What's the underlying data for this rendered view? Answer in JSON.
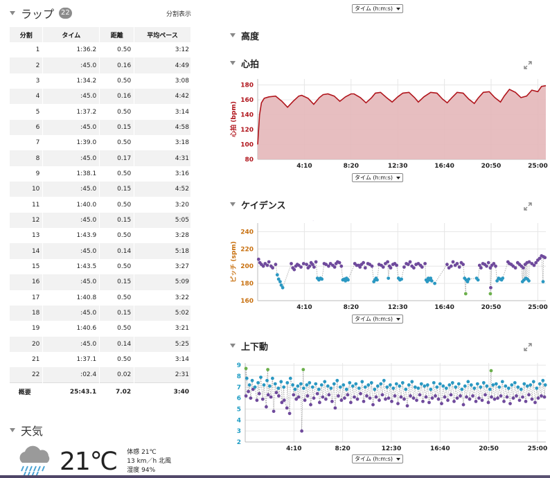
{
  "laps": {
    "title": "ラップ",
    "count": "22",
    "split_link": "分割表示",
    "columns": [
      "分割",
      "タイム",
      "距離",
      "平均ペース"
    ],
    "rows": [
      [
        "1",
        "1:36.2",
        "0.50",
        "3:12"
      ],
      [
        "2",
        ":45.0",
        "0.16",
        "4:49"
      ],
      [
        "3",
        "1:34.2",
        "0.50",
        "3:08"
      ],
      [
        "4",
        ":45.0",
        "0.16",
        "4:42"
      ],
      [
        "5",
        "1:37.2",
        "0.50",
        "3:14"
      ],
      [
        "6",
        ":45.0",
        "0.15",
        "4:58"
      ],
      [
        "7",
        "1:39.0",
        "0.50",
        "3:18"
      ],
      [
        "8",
        ":45.0",
        "0.17",
        "4:31"
      ],
      [
        "9",
        "1:38.1",
        "0.50",
        "3:16"
      ],
      [
        "10",
        ":45.0",
        "0.15",
        "4:52"
      ],
      [
        "11",
        "1:40.0",
        "0.50",
        "3:20"
      ],
      [
        "12",
        ":45.0",
        "0.15",
        "5:05"
      ],
      [
        "13",
        "1:43.9",
        "0.50",
        "3:28"
      ],
      [
        "14",
        ":45.0",
        "0.14",
        "5:18"
      ],
      [
        "15",
        "1:43.5",
        "0.50",
        "3:27"
      ],
      [
        "16",
        ":45.0",
        "0.15",
        "5:09"
      ],
      [
        "17",
        "1:40.8",
        "0.50",
        "3:22"
      ],
      [
        "18",
        ":45.0",
        "0.15",
        "5:02"
      ],
      [
        "19",
        "1:40.6",
        "0.50",
        "3:21"
      ],
      [
        "20",
        ":45.0",
        "0.14",
        "5:25"
      ],
      [
        "21",
        "1:37.1",
        "0.50",
        "3:14"
      ],
      [
        "22",
        ":02.4",
        "0.02",
        "2:31"
      ]
    ],
    "summary": [
      "概要",
      "25:43.1",
      "7.02",
      "3:40"
    ]
  },
  "weather": {
    "title": "天気",
    "icon": "rain-cloud-icon",
    "temp": "21℃",
    "feels_like": "体感 21℃",
    "wind": "13 km／h 北風",
    "humidity": "湿度 94%"
  },
  "x_select": "タイム (h:m:s)",
  "sections": {
    "altitude": "高度",
    "heart_rate": "心拍",
    "cadence": "ケイデンス",
    "vertical": "上下動"
  },
  "colors": {
    "hr_line": "#b0141b",
    "hr_fill": "#e4b7b9",
    "cadence_axis": "#c8700f",
    "vertical_axis": "#1d9cc4",
    "purple": "#6f4a9c",
    "blue": "#2a98c2",
    "green": "#6cb04c"
  },
  "chart_data": [
    {
      "type": "area",
      "name": "hr",
      "ylabel": "心拍 (bpm)",
      "yticks": [
        80,
        100,
        120,
        140,
        160,
        180
      ],
      "ylim": [
        80,
        188
      ],
      "xlim": [
        0,
        1543
      ],
      "xticks": [
        "4:10",
        "8:20",
        "12:30",
        "16:40",
        "20:50",
        "25:00"
      ],
      "grid": true,
      "x": [
        0,
        10,
        20,
        35,
        60,
        96,
        130,
        160,
        190,
        220,
        236,
        270,
        300,
        330,
        350,
        376,
        410,
        440,
        470,
        500,
        516,
        550,
        580,
        610,
        630,
        658,
        690,
        720,
        750,
        777,
        810,
        840,
        860,
        890,
        926,
        960,
        990,
        1015,
        1040,
        1068,
        1100,
        1130,
        1160,
        1180,
        1208,
        1240,
        1270,
        1300,
        1320,
        1348,
        1380,
        1410,
        1440,
        1468,
        1500,
        1520,
        1543
      ],
      "y": [
        100,
        140,
        156,
        162,
        164,
        165,
        158,
        150,
        158,
        165,
        166,
        162,
        154,
        163,
        167,
        168,
        165,
        158,
        164,
        168,
        168,
        163,
        156,
        163,
        169,
        170,
        163,
        157,
        164,
        169,
        170,
        163,
        157,
        164,
        170,
        169,
        161,
        156,
        163,
        170,
        169,
        161,
        155,
        162,
        170,
        171,
        163,
        157,
        165,
        174,
        170,
        163,
        165,
        173,
        171,
        178,
        179
      ]
    },
    {
      "type": "scatter",
      "name": "cadence",
      "ylabel": "ピッチ (spm)",
      "yticks": [
        160,
        180,
        200,
        220,
        240
      ],
      "ylim": [
        160,
        250
      ],
      "xlim": [
        0,
        1543
      ],
      "xticks": [
        "4:10",
        "8:20",
        "12:30",
        "16:40",
        "20:50",
        "25:00"
      ],
      "grid": true,
      "series": [
        {
          "color": "purple",
          "x": [
            5,
            12,
            20,
            30,
            40,
            52,
            60,
            72,
            80,
            96,
            180,
            188,
            196,
            204,
            212,
            220,
            232,
            246,
            262,
            270,
            278,
            286,
            294,
            302,
            312,
            356,
            366,
            380,
            390,
            402,
            412,
            420,
            428,
            438,
            448,
            520,
            530,
            540,
            548,
            556,
            566,
            576,
            590,
            600,
            612,
            650,
            662,
            672,
            684,
            696,
            706,
            712,
            724,
            734,
            744,
            784,
            796,
            806,
            816,
            826,
            836,
            848,
            860,
            872,
            880,
            896,
            1014,
            1024,
            1036,
            1046,
            1058,
            1068,
            1080,
            1090,
            1100,
            1188,
            1196,
            1206,
            1216,
            1226,
            1236,
            1246,
            1254,
            1264,
            1274,
            1340,
            1348,
            1358,
            1368,
            1380,
            1392,
            1402,
            1412,
            1422,
            1432,
            1442,
            1454,
            1468,
            1480,
            1490,
            1500,
            1510,
            1520,
            1530,
            1538
          ],
          "y": [
            208,
            204,
            202,
            200,
            203,
            201,
            205,
            200,
            198,
            202,
            203,
            198,
            196,
            200,
            202,
            201,
            199,
            203,
            202,
            198,
            200,
            204,
            202,
            199,
            205,
            203,
            202,
            200,
            203,
            201,
            199,
            203,
            205,
            204,
            200,
            203,
            201,
            201,
            199,
            202,
            204,
            198,
            203,
            202,
            200,
            202,
            201,
            199,
            203,
            205,
            200,
            198,
            202,
            203,
            201,
            199,
            203,
            202,
            205,
            200,
            198,
            202,
            203,
            201,
            199,
            203,
            202,
            198,
            200,
            205,
            201,
            203,
            199,
            204,
            202,
            201,
            198,
            203,
            202,
            200,
            204,
            198,
            201,
            203,
            200,
            205,
            203,
            202,
            200,
            198,
            204,
            202,
            200,
            198,
            202,
            204,
            205,
            203,
            201,
            204,
            207,
            209,
            212,
            211,
            210
          ]
        },
        {
          "color": "blue",
          "x": [
            105,
            112,
            120,
            126,
            134,
            320,
            328,
            336,
            344,
            456,
            464,
            470,
            476,
            484,
            622,
            628,
            634,
            640,
            700,
            754,
            762,
            770,
            902,
            908,
            914,
            920,
            926,
            932,
            948,
            1108,
            1116,
            1124,
            1130,
            1172,
            1180,
            1282,
            1290,
            1298,
            1306,
            1312,
            1418,
            1426,
            1436,
            1444,
            1452,
            1528
          ],
          "y": [
            190,
            185,
            182,
            178,
            175,
            186,
            184,
            186,
            185,
            184,
            185,
            183,
            186,
            184,
            182,
            184,
            186,
            184,
            186,
            186,
            184,
            185,
            184,
            182,
            186,
            184,
            186,
            183,
            180,
            186,
            184,
            182,
            185,
            186,
            184,
            183,
            186,
            185,
            184,
            186,
            182,
            184,
            186,
            185,
            183,
            182
          ]
        },
        {
          "color": "green",
          "x": [
            1114,
            1246
          ],
          "y": [
            168,
            168
          ]
        }
      ],
      "outliers": [
        {
          "x": 298,
          "y": 255
        },
        {
          "x": 1248,
          "y": 175
        }
      ]
    },
    {
      "type": "scatter",
      "name": "vertical",
      "ylabel": "上下動 (cm)",
      "yticks": [
        2,
        3,
        4,
        5,
        6,
        7,
        8,
        9
      ],
      "ylim": [
        2,
        9.2
      ],
      "xlim": [
        0,
        1543
      ],
      "xticks": [
        "4:10",
        "8:20",
        "12:30",
        "16:40",
        "20:50",
        "25:00"
      ],
      "grid": true,
      "series": [
        {
          "color": "purple",
          "x": [
            4,
            16,
            28,
            40,
            60,
            72,
            90,
            108,
            118,
            132,
            146,
            160,
            172,
            188,
            200,
            214,
            228,
            248,
            262,
            274,
            290,
            306,
            320,
            336,
            352,
            370,
            382,
            398,
            414,
            430,
            446,
            462,
            478,
            494,
            510,
            526,
            542,
            560,
            576,
            592,
            608,
            624,
            640,
            656,
            672,
            688,
            704,
            720,
            736,
            752,
            768,
            784,
            800,
            816,
            832,
            848,
            864,
            880,
            896,
            912,
            928,
            944,
            960,
            976,
            992,
            1008,
            1024,
            1040,
            1056,
            1072,
            1088,
            1104,
            1120,
            1136,
            1152,
            1168,
            1184,
            1200,
            1216,
            1232,
            1248,
            1264,
            1280,
            1296,
            1312,
            1328,
            1344,
            1360,
            1376,
            1392,
            1408,
            1424,
            1440,
            1456,
            1472,
            1488,
            1504,
            1520,
            1536
          ],
          "y": [
            6.2,
            6.6,
            6.0,
            6.8,
            5.8,
            6.4,
            5.9,
            5.2,
            6.3,
            6.1,
            4.8,
            6.5,
            6.2,
            5.6,
            5.8,
            5.1,
            4.6,
            6.3,
            5.9,
            6.1,
            3.0,
            5.8,
            6.2,
            5.4,
            6.0,
            6.4,
            5.6,
            6.1,
            5.9,
            6.3,
            5.7,
            5.1,
            6.2,
            5.8,
            6.0,
            6.3,
            5.6,
            6.1,
            5.9,
            6.4,
            5.7,
            6.2,
            6.0,
            5.4,
            6.1,
            5.8,
            6.3,
            5.9,
            6.0,
            5.7,
            6.2,
            5.5,
            6.1,
            5.9,
            5.3,
            6.2,
            6.0,
            5.8,
            6.3,
            5.7,
            6.1,
            5.6,
            6.0,
            6.2,
            5.9,
            5.5,
            6.1,
            5.8,
            6.3,
            5.7,
            6.0,
            6.2,
            5.4,
            6.1,
            5.9,
            6.2,
            5.7,
            6.0,
            5.8,
            6.3,
            5.6,
            6.1,
            5.9,
            6.0,
            6.2,
            5.7,
            6.1,
            5.5,
            6.0,
            6.2,
            5.8,
            6.1,
            5.7,
            6.3,
            5.9,
            5.6,
            6.0,
            6.2,
            6.1
          ]
        },
        {
          "color": "blue",
          "x": [
            8,
            22,
            36,
            50,
            66,
            80,
            96,
            112,
            126,
            140,
            154,
            170,
            184,
            198,
            216,
            232,
            244,
            256,
            270,
            286,
            300,
            316,
            330,
            346,
            362,
            378,
            392,
            408,
            424,
            440,
            456,
            472,
            488,
            504,
            520,
            536,
            552,
            568,
            584,
            600,
            616,
            632,
            648,
            664,
            680,
            696,
            712,
            728,
            744,
            760,
            776,
            792,
            808,
            824,
            840,
            856,
            872,
            888,
            904,
            920,
            936,
            952,
            968,
            984,
            1000,
            1016,
            1032,
            1048,
            1064,
            1080,
            1096,
            1112,
            1128,
            1144,
            1160,
            1176,
            1192,
            1208,
            1224,
            1240,
            1256,
            1272,
            1288,
            1304,
            1320,
            1336,
            1352,
            1368,
            1384,
            1400,
            1416,
            1432,
            1448,
            1464,
            1480,
            1496,
            1512,
            1528,
            1540
          ],
          "y": [
            7.8,
            7.2,
            7.6,
            7.0,
            7.4,
            7.9,
            7.2,
            7.6,
            7.1,
            7.8,
            7.3,
            6.9,
            7.5,
            7.0,
            7.4,
            7.8,
            7.2,
            6.8,
            7.1,
            7.3,
            6.9,
            7.2,
            7.4,
            7.0,
            7.3,
            6.8,
            7.2,
            7.5,
            7.1,
            6.9,
            7.3,
            7.6,
            7.0,
            7.2,
            6.8,
            7.4,
            7.1,
            7.3,
            6.9,
            7.5,
            7.0,
            7.2,
            7.4,
            6.8,
            7.1,
            7.3,
            7.6,
            7.0,
            7.2,
            6.9,
            7.3,
            7.1,
            7.4,
            6.8,
            7.2,
            7.5,
            7.0,
            6.9,
            7.3,
            7.1,
            7.2,
            6.8,
            7.4,
            7.0,
            7.3,
            7.1,
            6.9,
            7.2,
            7.4,
            7.0,
            7.3,
            6.8,
            7.1,
            7.5,
            7.2,
            6.9,
            7.3,
            7.0,
            7.4,
            7.1,
            6.8,
            7.2,
            7.3,
            7.0,
            7.5,
            7.1,
            6.9,
            7.2,
            7.4,
            7.0,
            6.8,
            7.3,
            7.1,
            7.2,
            7.5,
            6.9,
            7.3,
            7.6,
            7.2
          ]
        },
        {
          "color": "green",
          "x": [
            4,
            116,
            298,
            1262
          ],
          "y": [
            8.7,
            8.6,
            8.6,
            8.5
          ]
        }
      ]
    }
  ]
}
